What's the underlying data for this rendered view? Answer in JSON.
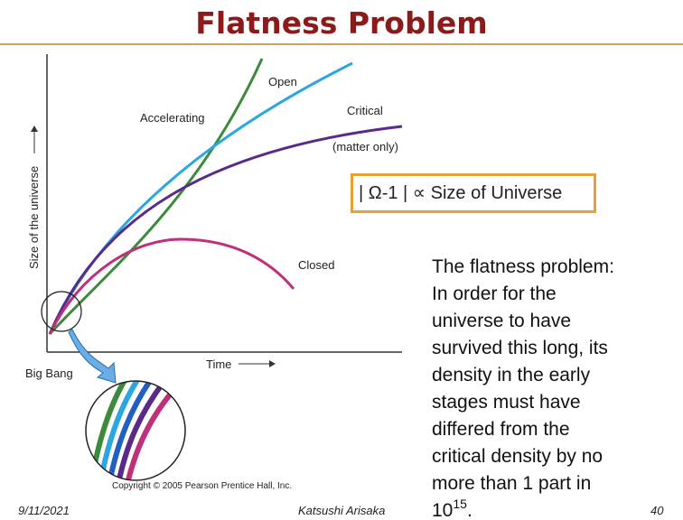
{
  "header": {
    "title": "Flatness Problem"
  },
  "figure": {
    "labels": {
      "open": "Open",
      "accelerating": "Accelerating",
      "critical": "Critical",
      "matter_only": "(matter only)",
      "y_axis": "Size of the universe",
      "closed": "Closed",
      "time": "Time",
      "big_bang": "Big Bang",
      "copyright": "Copyright © 2005 Pearson Prentice Hall, Inc."
    }
  },
  "formula": "| Ω-1 | ∝ Size of Universe",
  "body": {
    "lines": [
      "The flatness problem:",
      "In order for the",
      "universe to have",
      "survived this long, its",
      "density in the early",
      "stages must have",
      "differed from the",
      "critical density by no",
      "more than 1 part in"
    ],
    "last_base": "10",
    "last_exponent": "15",
    "last_end": "."
  },
  "footer": {
    "date": "9/11/2021",
    "author": "Katsushi Arisaka",
    "page": "40"
  }
}
